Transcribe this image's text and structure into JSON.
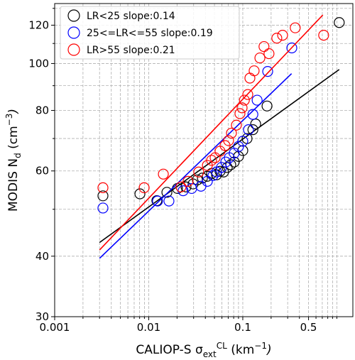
{
  "chart_data": {
    "type": "scatter",
    "xscale": "log",
    "yscale": "log",
    "grid": true,
    "legend": "upper left",
    "xlim": [
      0.001,
      1.48
    ],
    "ylim": [
      30,
      133
    ],
    "xticks": [
      0.001,
      0.01,
      0.1,
      0.5
    ],
    "xminor_ticks": [
      0.002,
      0.003,
      0.004,
      0.005,
      0.006,
      0.007,
      0.008,
      0.009,
      0.02,
      0.03,
      0.04,
      0.05,
      0.06,
      0.07,
      0.08,
      0.09,
      0.2,
      0.3,
      0.4,
      0.6,
      0.7,
      0.8,
      0.9,
      1
    ],
    "yticks": [
      30,
      40,
      60,
      80,
      100,
      120
    ],
    "yminor_ticks": [
      50,
      70,
      90,
      110,
      130
    ],
    "xlabel": [
      {
        "text": "CALIOP-S σ"
      },
      {
        "text": "ext",
        "shift": "sub"
      },
      {
        "text": "CL",
        "shift": "sup"
      },
      {
        "text": " (km"
      },
      {
        "text": "−1",
        "shift": "sup"
      },
      {
        "text": ")"
      }
    ],
    "ylabel": [
      {
        "text": "MODIS N"
      },
      {
        "text": "d",
        "shift": "sub"
      },
      {
        "text": " (cm"
      },
      {
        "text": "−3",
        "shift": "sup"
      },
      {
        "text": ")"
      }
    ],
    "series": [
      {
        "name": "LR<25 slope:0.14",
        "color": "#000000",
        "x": [
          0.00326,
          0.00806,
          0.0122,
          0.0156,
          0.0202,
          0.0249,
          0.0296,
          0.0329,
          0.0372,
          0.042,
          0.0466,
          0.0526,
          0.0573,
          0.0625,
          0.0683,
          0.0745,
          0.0811,
          0.0901,
          0.1,
          0.111,
          0.128,
          0.137,
          0.181,
          1.06
        ],
        "y": [
          53.3,
          53.8,
          52.1,
          54.2,
          55.2,
          55.6,
          56.4,
          57.5,
          58.0,
          58.5,
          59.3,
          58.9,
          59.9,
          59.7,
          61.0,
          61.8,
          62.6,
          64.3,
          66.1,
          70.0,
          73.0,
          75.0,
          81.7,
          121.5
        ],
        "fit_x": [
          0.003,
          1.06
        ],
        "fit_y": [
          42.7,
          97.2
        ]
      },
      {
        "name": "25<=LR<=55 slope:0.19",
        "color": "#0000ff",
        "x": [
          0.00326,
          0.0124,
          0.0164,
          0.0232,
          0.0286,
          0.0359,
          0.042,
          0.0482,
          0.0526,
          0.0594,
          0.0659,
          0.0719,
          0.0811,
          0.0901,
          0.1,
          0.115,
          0.128,
          0.142,
          0.184,
          0.332
        ],
        "y": [
          50.3,
          52.0,
          52.0,
          54.6,
          55.2,
          55.8,
          57.1,
          58.7,
          59.7,
          61.0,
          62.6,
          63.9,
          65.3,
          67.4,
          69.1,
          73.0,
          78.5,
          84.0,
          96.3,
          107.7
        ],
        "fit_x": [
          0.003,
          0.33
        ],
        "fit_y": [
          39.6,
          95.3
        ]
      },
      {
        "name": "LR>55 slope:0.21",
        "color": "#ff0000",
        "x": [
          0.00326,
          0.00894,
          0.0143,
          0.022,
          0.0262,
          0.034,
          0.042,
          0.0466,
          0.0508,
          0.0573,
          0.0648,
          0.0706,
          0.0757,
          0.0855,
          0.0933,
          0.0983,
          0.104,
          0.113,
          0.119,
          0.132,
          0.152,
          0.168,
          0.19,
          0.23,
          0.265,
          0.361,
          0.724
        ],
        "y": [
          55.4,
          55.4,
          59.1,
          55.6,
          57.1,
          59.7,
          61.6,
          63.1,
          63.9,
          65.9,
          67.7,
          69.3,
          71.8,
          74.6,
          78.8,
          81.0,
          84.0,
          86.3,
          93.3,
          96.6,
          102.7,
          108.4,
          104.8,
          112.8,
          114.4,
          118.5,
          114.4
        ],
        "fit_x": [
          0.003,
          0.71
        ],
        "fit_y": [
          41.2,
          126
        ]
      }
    ]
  }
}
